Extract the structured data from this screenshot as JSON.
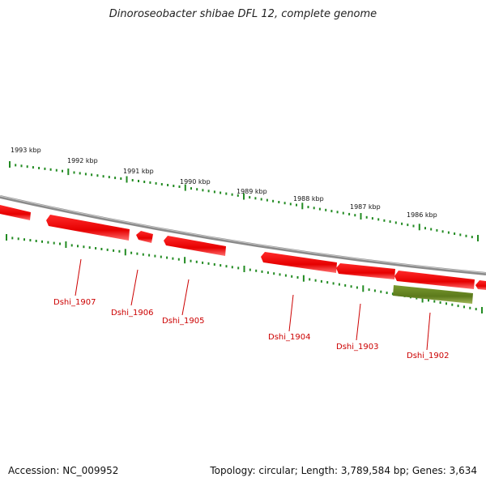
{
  "title": "Dinoroseobacter shibae DFL 12, complete genome",
  "footer": {
    "accession": "Accession: NC_009952",
    "stats": "Topology: circular; Length: 3,789,584 bp; Genes: 3,634"
  },
  "colors": {
    "gene_plus": "#ff0000",
    "gene_rna": "#6b8e23",
    "backbone": "#808080",
    "tick": "#228b22",
    "label": "#cc0000"
  },
  "kbp_labels": [
    "1993 kbp",
    "1992 kbp",
    "1991 kbp",
    "1990 kbp",
    "1989 kbp",
    "1988 kbp",
    "1987 kbp",
    "1986 kbp"
  ],
  "genes": [
    {
      "id": "partial-left",
      "label": "",
      "type": "cds"
    },
    {
      "id": "Dshi_1907",
      "label": "Dshi_1907",
      "type": "cds"
    },
    {
      "id": "Dshi_1906",
      "label": "Dshi_1906",
      "type": "cds"
    },
    {
      "id": "Dshi_1905",
      "label": "Dshi_1905",
      "type": "cds"
    },
    {
      "id": "Dshi_1904",
      "label": "Dshi_1904",
      "type": "cds"
    },
    {
      "id": "Dshi_1903",
      "label": "Dshi_1903",
      "type": "cds"
    },
    {
      "id": "Dshi_1902",
      "label": "Dshi_1902",
      "type": "cds"
    },
    {
      "id": "Dshi_1902b",
      "label": "",
      "type": "cds"
    },
    {
      "id": "rna",
      "label": "",
      "type": "rna"
    },
    {
      "id": "partial-right",
      "label": "",
      "type": "cds"
    }
  ]
}
